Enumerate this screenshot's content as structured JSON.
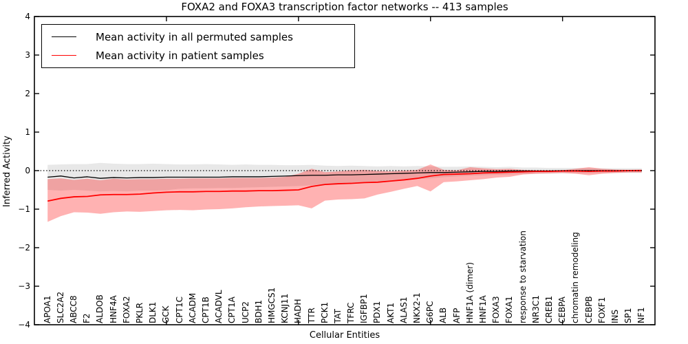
{
  "title": "FOXA2 and FOXA3 transcription factor networks -- 413 samples",
  "axes": {
    "ylabel": "Inferred Activity",
    "xlabel": "Cellular Entities",
    "ytick_labels": [
      "4",
      "3",
      "2",
      "1",
      "0",
      "−1",
      "−2",
      "−3",
      "−4"
    ]
  },
  "legend": {
    "entries": [
      {
        "label": "Mean activity in all permuted samples",
        "color": "#000000"
      },
      {
        "label": "Mean activity in patient samples",
        "color": "#ff0000"
      }
    ]
  },
  "colors": {
    "permuted_line": "#000000",
    "patient_line": "#ff0000",
    "permuted_band": "rgba(0,0,0,0.09)",
    "patient_band": "rgba(255,0,0,0.30)",
    "zero_line": "#000000",
    "frame": "#000000"
  },
  "chart_data": {
    "type": "line",
    "title": "FOXA2 and FOXA3 transcription factor networks -- 413 samples",
    "xlabel": "Cellular Entities",
    "ylabel": "Inferred Activity",
    "ylim": [
      -4,
      4
    ],
    "xlim": [
      -1,
      46
    ],
    "yticks": [
      4,
      3,
      2,
      1,
      0,
      -1,
      -2,
      -3,
      -4
    ],
    "marker_tick_indices": [
      9,
      19,
      29,
      39
    ],
    "zero_line": true,
    "grid": false,
    "legend_position": "upper left",
    "categories": [
      "APOA1",
      "SLC2A2",
      "ABCC8",
      "F2",
      "ALDOB",
      "HNF4A",
      "FOXA2",
      "PKLR",
      "DLK1",
      "GCK",
      "CPT1C",
      "ACADM",
      "CPT1B",
      "ACADVL",
      "CPT1A",
      "UCP2",
      "BDH1",
      "HMGCS1",
      "KCNJ11",
      "HADH",
      "TTR",
      "PCK1",
      "TAT",
      "TFRC",
      "IGFBP1",
      "PDX1",
      "AKT1",
      "ALAS1",
      "NKX2-1",
      "G6PC",
      "ALB",
      "AFP",
      "HNF1A (dimer)",
      "HNF1A",
      "FOXA3",
      "FOXA1",
      "response to starvation",
      "NR3C1",
      "CREB1",
      "CEBPA",
      "chromatin remodeling",
      "CEBPB",
      "FOXF1",
      "INS",
      "SP1",
      "NF1"
    ],
    "series": [
      {
        "name": "Mean activity in all permuted samples",
        "color": "#000000",
        "line_width": 1.3,
        "values": [
          -0.17,
          -0.14,
          -0.19,
          -0.16,
          -0.2,
          -0.18,
          -0.19,
          -0.18,
          -0.18,
          -0.17,
          -0.17,
          -0.17,
          -0.17,
          -0.17,
          -0.16,
          -0.16,
          -0.16,
          -0.15,
          -0.14,
          -0.13,
          -0.12,
          -0.12,
          -0.11,
          -0.11,
          -0.1,
          -0.09,
          -0.08,
          -0.07,
          -0.06,
          -0.05,
          -0.05,
          -0.04,
          -0.03,
          -0.02,
          -0.02,
          -0.01,
          -0.01,
          -0.01,
          -0.01,
          0.0,
          0.0,
          0.0,
          0.0,
          0.0,
          0.0,
          0.0
        ],
        "band_upper": [
          0.15,
          0.16,
          0.17,
          0.17,
          0.2,
          0.18,
          0.17,
          0.17,
          0.18,
          0.17,
          0.16,
          0.16,
          0.17,
          0.16,
          0.15,
          0.16,
          0.15,
          0.15,
          0.14,
          0.14,
          0.15,
          0.13,
          0.12,
          0.13,
          0.12,
          0.11,
          0.12,
          0.11,
          0.12,
          0.11,
          0.1,
          0.1,
          0.11,
          0.1,
          0.09,
          0.1,
          0.08,
          0.08,
          0.07,
          0.07,
          0.07,
          0.07,
          0.06,
          0.06,
          0.06,
          0.06
        ],
        "band_lower": [
          -0.5,
          -0.52,
          -0.5,
          -0.52,
          -0.54,
          -0.53,
          -0.54,
          -0.52,
          -0.52,
          -0.51,
          -0.47,
          -0.46,
          -0.46,
          -0.45,
          -0.45,
          -0.44,
          -0.43,
          -0.42,
          -0.41,
          -0.4,
          -0.38,
          -0.35,
          -0.33,
          -0.31,
          -0.3,
          -0.28,
          -0.26,
          -0.24,
          -0.22,
          -0.2,
          -0.17,
          -0.15,
          -0.13,
          -0.12,
          -0.11,
          -0.1,
          -0.09,
          -0.08,
          -0.08,
          -0.07,
          -0.07,
          -0.07,
          -0.06,
          -0.06,
          -0.06,
          -0.06
        ],
        "band_color": "rgba(0,0,0,0.09)"
      },
      {
        "name": "Mean activity in patient samples",
        "color": "#ff0000",
        "line_width": 1.8,
        "values": [
          -0.79,
          -0.72,
          -0.68,
          -0.67,
          -0.63,
          -0.62,
          -0.62,
          -0.61,
          -0.58,
          -0.56,
          -0.55,
          -0.55,
          -0.54,
          -0.54,
          -0.53,
          -0.53,
          -0.52,
          -0.52,
          -0.51,
          -0.5,
          -0.41,
          -0.36,
          -0.34,
          -0.33,
          -0.31,
          -0.3,
          -0.27,
          -0.24,
          -0.2,
          -0.14,
          -0.1,
          -0.09,
          -0.08,
          -0.06,
          -0.05,
          -0.04,
          -0.03,
          -0.02,
          -0.02,
          -0.01,
          -0.01,
          -0.02,
          -0.01,
          -0.01,
          0.0,
          0.0
        ],
        "band_upper": [
          -0.22,
          -0.2,
          -0.24,
          -0.21,
          -0.25,
          -0.21,
          -0.23,
          -0.22,
          -0.22,
          -0.21,
          -0.21,
          -0.2,
          -0.2,
          -0.2,
          -0.19,
          -0.19,
          -0.19,
          -0.18,
          -0.16,
          -0.08,
          0.05,
          -0.04,
          -0.02,
          0.01,
          0.02,
          -0.01,
          -0.02,
          0.0,
          0.02,
          0.16,
          0.02,
          0.01,
          0.09,
          0.06,
          0.04,
          0.05,
          0.02,
          0.01,
          0.01,
          0.01,
          0.05,
          0.09,
          0.05,
          0.03,
          0.02,
          0.03
        ],
        "band_lower": [
          -1.33,
          -1.18,
          -1.08,
          -1.09,
          -1.12,
          -1.08,
          -1.06,
          -1.07,
          -1.05,
          -1.03,
          -1.02,
          -1.03,
          -1.01,
          -1.0,
          -0.98,
          -0.95,
          -0.93,
          -0.92,
          -0.91,
          -0.9,
          -0.98,
          -0.78,
          -0.75,
          -0.74,
          -0.72,
          -0.62,
          -0.55,
          -0.47,
          -0.4,
          -0.54,
          -0.3,
          -0.28,
          -0.25,
          -0.22,
          -0.18,
          -0.16,
          -0.1,
          -0.08,
          -0.07,
          -0.06,
          -0.08,
          -0.12,
          -0.08,
          -0.06,
          -0.05,
          -0.05
        ],
        "band_color": "rgba(255,0,0,0.30)"
      }
    ]
  }
}
